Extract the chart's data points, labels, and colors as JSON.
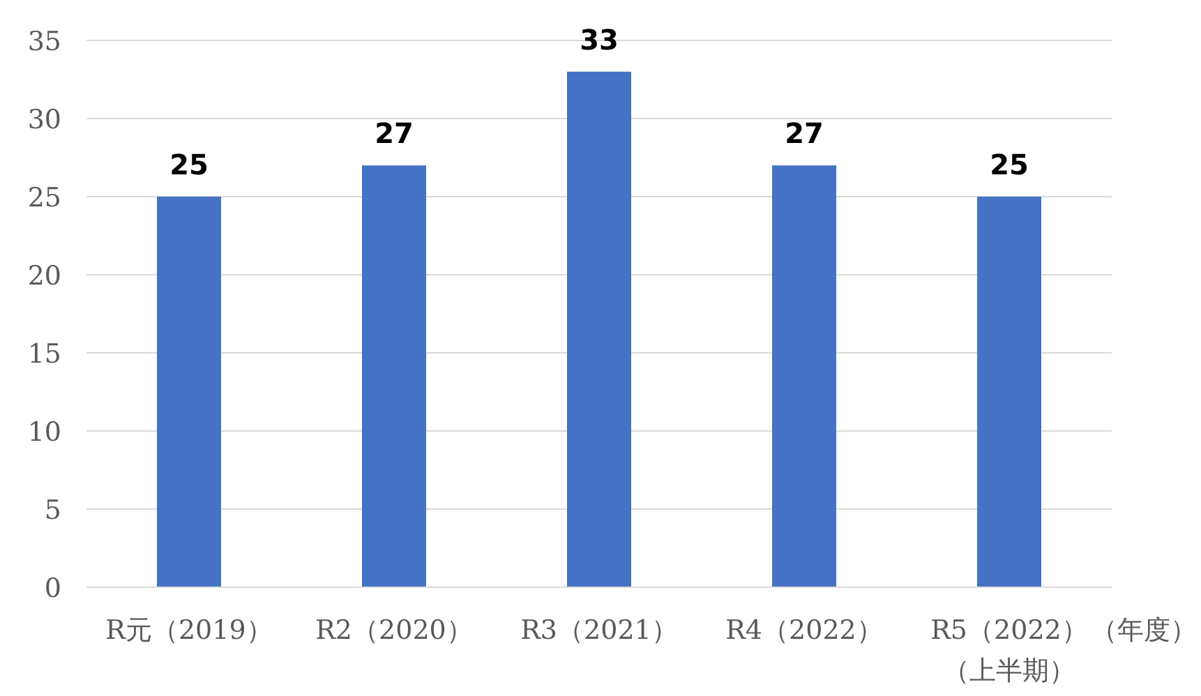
{
  "chart_data": {
    "type": "bar",
    "categories": [
      "R元（2019）",
      "R2（2020）",
      "R3（2021）",
      "R4（2022）",
      "R5（2022）（上半期）"
    ],
    "values": [
      25,
      27,
      33,
      27,
      25
    ],
    "color": "#4472c4",
    "ylim": [
      0,
      35
    ],
    "yticks": [
      0,
      5,
      10,
      15,
      20,
      25,
      30,
      35
    ],
    "grid": "y",
    "data_labels": true,
    "xlabel": "（年度）"
  }
}
